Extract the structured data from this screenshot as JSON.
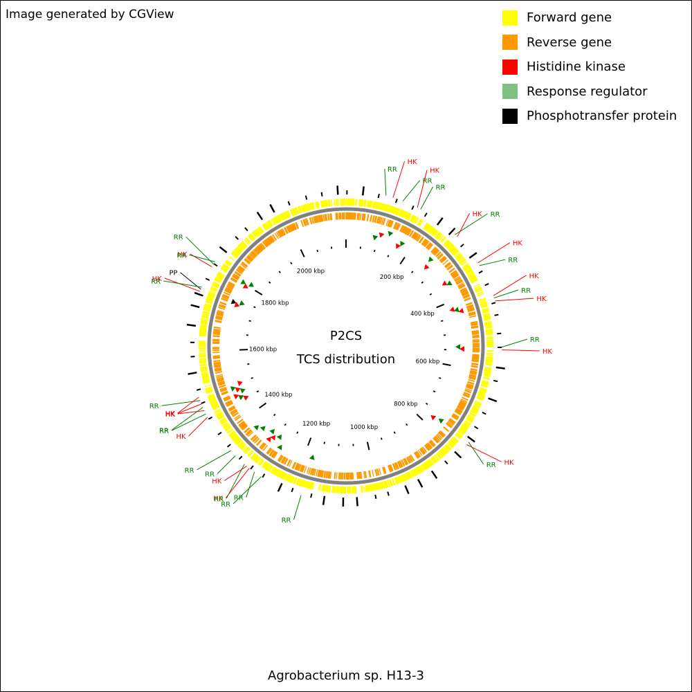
{
  "credit": "Image generated by CGView",
  "legend": [
    {
      "label": "Forward gene",
      "color": "#ffff00"
    },
    {
      "label": "Reverse gene",
      "color": "#ff9900"
    },
    {
      "label": "Histidine kinase",
      "color": "#ff0000"
    },
    {
      "label": "Response regulator",
      "color": "#80c080"
    },
    {
      "label": "Phosphotransfer protein",
      "color": "#000000"
    }
  ],
  "center_title": "P2CS",
  "center_subtitle": "TCS distribution",
  "footer": "Agrobacterium sp. H13-3",
  "genome_kbp": 2150,
  "ruler_labels": [
    {
      "kbp": 200,
      "text": "200 kbp"
    },
    {
      "kbp": 400,
      "text": "400 kbp"
    },
    {
      "kbp": 600,
      "text": "600 kbp"
    },
    {
      "kbp": 800,
      "text": "800 kbp"
    },
    {
      "kbp": 1000,
      "text": "1000 kbp"
    },
    {
      "kbp": 1200,
      "text": "1200 kbp"
    },
    {
      "kbp": 1400,
      "text": "1400 kbp"
    },
    {
      "kbp": 1600,
      "text": "1600 kbp"
    },
    {
      "kbp": 1800,
      "text": "1800 kbp"
    },
    {
      "kbp": 2000,
      "text": "2000 kbp"
    }
  ],
  "colors": {
    "forward": "#ffff00",
    "reverse": "#ff9900",
    "hk": "#ff0000",
    "rr": "#008000",
    "pp": "#000000",
    "backbone": "#808080"
  },
  "features": [
    {
      "kbp": 89,
      "type": "RR",
      "label": "RR"
    },
    {
      "kbp": 105,
      "type": "HK",
      "label": "HK"
    },
    {
      "kbp": 128,
      "type": "RR",
      "label": "RR"
    },
    {
      "kbp": 163,
      "type": "HK",
      "label": "HK"
    },
    {
      "kbp": 171,
      "type": "RR",
      "label": "RR"
    },
    {
      "kbp": 265,
      "type": "RR",
      "label": "RR"
    },
    {
      "kbp": 272,
      "type": "HK",
      "label": "HK"
    },
    {
      "kbp": 345,
      "type": "HK",
      "label": "HK"
    },
    {
      "kbp": 352,
      "type": "RR",
      "label": "RR"
    },
    {
      "kbp": 425,
      "type": "HK",
      "label": "HK"
    },
    {
      "kbp": 430,
      "type": "RR",
      "label": "RR"
    },
    {
      "kbp": 437,
      "type": "HK",
      "label": "HK"
    },
    {
      "kbp": 540,
      "type": "RR",
      "label": "RR"
    },
    {
      "kbp": 546,
      "type": "HK",
      "label": "HK"
    },
    {
      "kbp": 765,
      "type": "RR",
      "label": "RR"
    },
    {
      "kbp": 772,
      "type": "HK",
      "label": "HK"
    },
    {
      "kbp": 1175,
      "type": "RR",
      "label": "RR"
    },
    {
      "kbp": 1272,
      "type": "RR",
      "label": "RR"
    },
    {
      "kbp": 1290,
      "type": "RR",
      "label": "RR"
    },
    {
      "kbp": 1304,
      "type": "HK",
      "label": "HK"
    },
    {
      "kbp": 1311,
      "type": "HK",
      "label": "HK"
    },
    {
      "kbp": 1318,
      "type": "RR",
      "label": "RR"
    },
    {
      "kbp": 1345,
      "type": "RR",
      "label": "RR"
    },
    {
      "kbp": 1360,
      "type": "RR",
      "label": "RR"
    },
    {
      "kbp": 1450,
      "type": "HK",
      "label": "HK"
    },
    {
      "kbp": 1458,
      "type": "RR",
      "label": "RR"
    },
    {
      "kbp": 1466,
      "type": "HK",
      "label": "HK"
    },
    {
      "kbp": 1474,
      "type": "RR",
      "label": "RR"
    },
    {
      "kbp": 1482,
      "type": "HK",
      "label": "HK"
    },
    {
      "kbp": 1490,
      "type": "RR",
      "label": "RR"
    },
    {
      "kbp": 1498,
      "type": "HK",
      "label": "HK"
    },
    {
      "kbp": 1735,
      "type": "HK",
      "label": "HK"
    },
    {
      "kbp": 1740,
      "type": "PP",
      "label": "PP"
    },
    {
      "kbp": 1745,
      "type": "RR",
      "label": "RR"
    },
    {
      "kbp": 1795,
      "type": "HK",
      "label": "HK"
    },
    {
      "kbp": 1802,
      "type": "RR",
      "label": "RR"
    },
    {
      "kbp": 1808,
      "type": "RR",
      "label": "RR"
    }
  ]
}
